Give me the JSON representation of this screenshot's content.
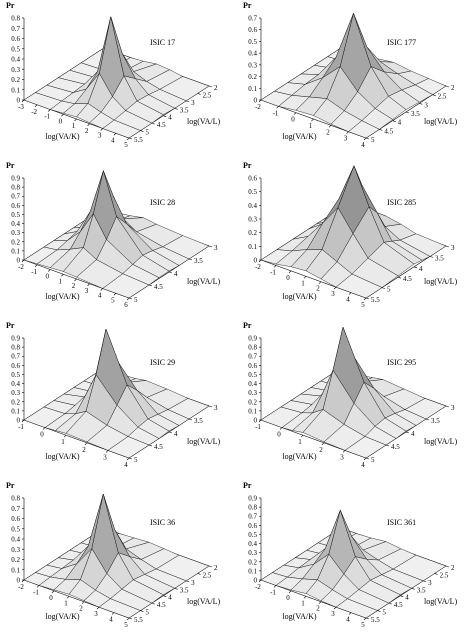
{
  "chart_data": [
    {
      "type": "surface",
      "title": "ISIC 17",
      "zlabel": "Pr",
      "xlabel": "log(VA/K)",
      "ylabel": "log(VA/L)",
      "xlim": [
        -3,
        5
      ],
      "xticks": [
        -3,
        -2,
        -1,
        0,
        1,
        2,
        3,
        4,
        5
      ],
      "ylim": [
        5.5,
        2
      ],
      "yticks": [
        2,
        2.5,
        3,
        3.5,
        4,
        4.5,
        5,
        5.5
      ],
      "zlim": [
        0,
        0.8
      ],
      "zticks": [
        0,
        0.1,
        0.2,
        0.3,
        0.4,
        0.5,
        0.6,
        0.7,
        0.8
      ],
      "x": [
        -3,
        -1,
        0,
        1,
        2,
        3,
        5
      ],
      "y": [
        5.5,
        5,
        4.5,
        4,
        3.5,
        3,
        2
      ],
      "z": [
        [
          0,
          0,
          0.01,
          0.02,
          0.01,
          0,
          0
        ],
        [
          0,
          0.01,
          0.03,
          0.08,
          0.04,
          0.01,
          0
        ],
        [
          0,
          0.02,
          0.1,
          0.3,
          0.12,
          0.03,
          0
        ],
        [
          0,
          0.03,
          0.2,
          0.78,
          0.25,
          0.05,
          0.01
        ],
        [
          0,
          0.02,
          0.12,
          0.35,
          0.15,
          0.04,
          0
        ],
        [
          0,
          0.01,
          0.04,
          0.1,
          0.05,
          0.02,
          0
        ],
        [
          0,
          0,
          0.01,
          0.03,
          0.02,
          0,
          0
        ]
      ]
    },
    {
      "type": "surface",
      "title": "ISIC 177",
      "zlabel": "Pr",
      "xlabel": "log(VA/K)",
      "ylabel": "log(VA/L)",
      "xlim": [
        -2,
        4
      ],
      "xticks": [
        -2,
        -1,
        0,
        1,
        2,
        3,
        4
      ],
      "ylim": [
        5,
        2
      ],
      "yticks": [
        2,
        2.5,
        3,
        3.5,
        4,
        4.5,
        5
      ],
      "zlim": [
        0,
        0.7
      ],
      "zticks": [
        0,
        0.1,
        0.2,
        0.3,
        0.4,
        0.5,
        0.6,
        0.7
      ],
      "x": [
        -2,
        -1,
        0,
        1,
        2,
        3,
        4
      ],
      "y": [
        5,
        4.5,
        4,
        3.5,
        3,
        2.5,
        2
      ],
      "z": [
        [
          0,
          0,
          0.02,
          0.03,
          0.01,
          0,
          0
        ],
        [
          0,
          0.02,
          0.06,
          0.1,
          0.05,
          0.02,
          0
        ],
        [
          0,
          0.04,
          0.15,
          0.3,
          0.14,
          0.05,
          0.01
        ],
        [
          0,
          0.05,
          0.25,
          0.68,
          0.28,
          0.08,
          0.02
        ],
        [
          0,
          0.03,
          0.14,
          0.32,
          0.16,
          0.06,
          0.01
        ],
        [
          0,
          0.01,
          0.05,
          0.12,
          0.07,
          0.03,
          0
        ],
        [
          0,
          0,
          0.02,
          0.04,
          0.02,
          0.01,
          0
        ]
      ]
    },
    {
      "type": "surface",
      "title": "ISIC 28",
      "zlabel": "Pr",
      "xlabel": "log(VA/K)",
      "ylabel": "log(VA/L)",
      "xlim": [
        -2,
        6
      ],
      "xticks": [
        -2,
        -1,
        0,
        1,
        2,
        3,
        4,
        5,
        6
      ],
      "ylim": [
        5,
        3
      ],
      "yticks": [
        3,
        3.5,
        4,
        4.5,
        5
      ],
      "zlim": [
        0,
        0.9
      ],
      "zticks": [
        0,
        0.1,
        0.2,
        0.3,
        0.4,
        0.5,
        0.6,
        0.7,
        0.8,
        0.9
      ],
      "x": [
        -2,
        -1,
        0,
        1,
        2,
        4,
        6
      ],
      "y": [
        5,
        4.5,
        4.25,
        4,
        3.75,
        3.5,
        3
      ],
      "z": [
        [
          0,
          0.01,
          0.02,
          0.03,
          0.02,
          0,
          0
        ],
        [
          0,
          0.02,
          0.08,
          0.15,
          0.07,
          0.02,
          0
        ],
        [
          0,
          0.05,
          0.2,
          0.45,
          0.22,
          0.05,
          0.01
        ],
        [
          0,
          0.08,
          0.35,
          0.85,
          0.4,
          0.08,
          0.01
        ],
        [
          0,
          0.05,
          0.22,
          0.5,
          0.25,
          0.06,
          0
        ],
        [
          0,
          0.02,
          0.08,
          0.18,
          0.09,
          0.03,
          0
        ],
        [
          0,
          0,
          0.02,
          0.05,
          0.03,
          0.01,
          0
        ]
      ]
    },
    {
      "type": "surface",
      "title": "ISIC 285",
      "zlabel": "Pr",
      "xlabel": "log(VA/K)",
      "ylabel": "log(VA/L)",
      "xlim": [
        -2,
        5
      ],
      "xticks": [
        -2,
        -1,
        0,
        1,
        2,
        3,
        4,
        5
      ],
      "ylim": [
        5.5,
        3
      ],
      "yticks": [
        3,
        3.5,
        4,
        4.5,
        5,
        5.5
      ],
      "zlim": [
        0,
        0.6
      ],
      "zticks": [
        0,
        0.1,
        0.2,
        0.3,
        0.4,
        0.5,
        0.6
      ],
      "x": [
        -2,
        -1,
        0,
        1,
        2,
        3,
        5
      ],
      "y": [
        5.5,
        5,
        4.5,
        4,
        3.75,
        3.5,
        3
      ],
      "z": [
        [
          0,
          0.01,
          0.03,
          0.04,
          0.02,
          0,
          0
        ],
        [
          0,
          0.03,
          0.08,
          0.12,
          0.07,
          0.02,
          0
        ],
        [
          0,
          0.06,
          0.2,
          0.35,
          0.2,
          0.06,
          0.01
        ],
        [
          0,
          0.08,
          0.3,
          0.58,
          0.32,
          0.1,
          0.02
        ],
        [
          0,
          0.06,
          0.2,
          0.4,
          0.24,
          0.07,
          0.01
        ],
        [
          0,
          0.03,
          0.1,
          0.18,
          0.1,
          0.04,
          0
        ],
        [
          0,
          0.01,
          0.03,
          0.06,
          0.04,
          0.01,
          0
        ]
      ]
    },
    {
      "type": "surface",
      "title": "ISIC 29",
      "zlabel": "Pr",
      "xlabel": "log(VA/K)",
      "ylabel": "log(VA/L)",
      "xlim": [
        -1,
        4
      ],
      "xticks": [
        -1,
        0,
        1,
        2,
        3,
        4
      ],
      "ylim": [
        5,
        3
      ],
      "yticks": [
        3,
        3.5,
        4,
        4.5,
        5
      ],
      "zlim": [
        0,
        0.9
      ],
      "zticks": [
        0,
        0.1,
        0.2,
        0.3,
        0.4,
        0.5,
        0.6,
        0.7,
        0.8,
        0.9
      ],
      "x": [
        -1,
        0,
        0.5,
        1,
        2,
        3,
        4
      ],
      "y": [
        5,
        4.5,
        4.25,
        4,
        3.75,
        3.5,
        3
      ],
      "z": [
        [
          0,
          0,
          0.01,
          0.02,
          0.01,
          0,
          0
        ],
        [
          0,
          0.01,
          0.05,
          0.12,
          0.05,
          0.01,
          0
        ],
        [
          0,
          0.03,
          0.18,
          0.45,
          0.2,
          0.04,
          0
        ],
        [
          0,
          0.05,
          0.32,
          0.88,
          0.35,
          0.06,
          0.01
        ],
        [
          0,
          0.03,
          0.2,
          0.48,
          0.22,
          0.04,
          0
        ],
        [
          0,
          0.01,
          0.06,
          0.15,
          0.07,
          0.02,
          0
        ],
        [
          0,
          0,
          0.01,
          0.03,
          0.02,
          0,
          0
        ]
      ]
    },
    {
      "type": "surface",
      "title": "ISIC 295",
      "zlabel": "Pr",
      "xlabel": "log(VA/K)",
      "ylabel": "log(VA/L)",
      "xlim": [
        -1,
        4
      ],
      "xticks": [
        -1,
        0,
        1,
        2,
        3,
        4
      ],
      "ylim": [
        5,
        3
      ],
      "yticks": [
        3,
        3.5,
        4,
        4.5,
        5
      ],
      "zlim": [
        0,
        0.9
      ],
      "zticks": [
        0,
        0.1,
        0.2,
        0.3,
        0.4,
        0.5,
        0.6,
        0.7,
        0.8,
        0.9
      ],
      "x": [
        -1,
        0,
        0.5,
        1,
        2,
        3,
        4
      ],
      "y": [
        5,
        4.5,
        4.25,
        4,
        3.75,
        3.5,
        3
      ],
      "z": [
        [
          0,
          0,
          0.01,
          0.03,
          0.01,
          0,
          0
        ],
        [
          0,
          0.02,
          0.06,
          0.14,
          0.06,
          0.01,
          0
        ],
        [
          0,
          0.04,
          0.2,
          0.5,
          0.22,
          0.05,
          0
        ],
        [
          0,
          0.06,
          0.35,
          0.9,
          0.38,
          0.07,
          0.01
        ],
        [
          0,
          0.04,
          0.22,
          0.52,
          0.24,
          0.05,
          0
        ],
        [
          0,
          0.01,
          0.07,
          0.16,
          0.08,
          0.02,
          0
        ],
        [
          0,
          0,
          0.02,
          0.04,
          0.02,
          0,
          0
        ]
      ]
    },
    {
      "type": "surface",
      "title": "ISIC 36",
      "zlabel": "Pr",
      "xlabel": "log(VA/K)",
      "ylabel": "log(VA/L)",
      "xlim": [
        -2,
        5
      ],
      "xticks": [
        -2,
        -1,
        0,
        1,
        2,
        3,
        4,
        5
      ],
      "ylim": [
        5.5,
        2
      ],
      "yticks": [
        2,
        2.5,
        3,
        3.5,
        4,
        4.5,
        5,
        5.5
      ],
      "zlim": [
        0,
        0.8
      ],
      "zticks": [
        0,
        0.1,
        0.2,
        0.3,
        0.4,
        0.5,
        0.6,
        0.7,
        0.8
      ],
      "x": [
        -2,
        -1,
        0,
        1,
        2,
        3,
        5
      ],
      "y": [
        5.5,
        5,
        4.5,
        4,
        3.5,
        3,
        2
      ],
      "z": [
        [
          0,
          0,
          0.01,
          0.02,
          0.01,
          0,
          0
        ],
        [
          0,
          0.01,
          0.04,
          0.09,
          0.04,
          0.01,
          0
        ],
        [
          0,
          0.02,
          0.12,
          0.32,
          0.13,
          0.03,
          0
        ],
        [
          0,
          0.03,
          0.22,
          0.78,
          0.26,
          0.05,
          0.01
        ],
        [
          0,
          0.02,
          0.12,
          0.36,
          0.15,
          0.03,
          0
        ],
        [
          0,
          0.01,
          0.04,
          0.1,
          0.05,
          0.01,
          0
        ],
        [
          0,
          0,
          0.01,
          0.02,
          0.01,
          0,
          0
        ]
      ]
    },
    {
      "type": "surface",
      "title": "ISIC 361",
      "zlabel": "Pr",
      "xlabel": "log(VA/K)",
      "ylabel": "log(VA/L)",
      "xlim": [
        -2,
        5
      ],
      "xticks": [
        -2,
        -1,
        0,
        1,
        2,
        3,
        4,
        5
      ],
      "ylim": [
        5.5,
        2
      ],
      "yticks": [
        2,
        2.5,
        3,
        3.5,
        4,
        4.5,
        5,
        5.5
      ],
      "zlim": [
        0,
        0.9
      ],
      "zticks": [
        0,
        0.1,
        0.2,
        0.3,
        0.4,
        0.5,
        0.6,
        0.7,
        0.8,
        0.9
      ],
      "x": [
        -2,
        -1,
        0,
        1,
        2,
        3,
        5
      ],
      "y": [
        5.5,
        5,
        4.5,
        4,
        3.5,
        3,
        2
      ],
      "z": [
        [
          0,
          0,
          0.01,
          0.03,
          0.01,
          0,
          0
        ],
        [
          0,
          0.01,
          0.05,
          0.1,
          0.05,
          0.01,
          0
        ],
        [
          0,
          0.03,
          0.13,
          0.3,
          0.14,
          0.03,
          0
        ],
        [
          0,
          0.04,
          0.22,
          0.7,
          0.25,
          0.05,
          0.01
        ],
        [
          0,
          0.02,
          0.12,
          0.33,
          0.14,
          0.03,
          0
        ],
        [
          0,
          0.01,
          0.04,
          0.1,
          0.05,
          0.01,
          0
        ],
        [
          0,
          0,
          0.01,
          0.03,
          0.01,
          0,
          0
        ]
      ]
    }
  ]
}
